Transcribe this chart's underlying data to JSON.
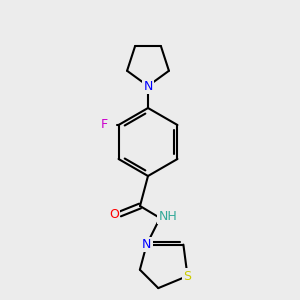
{
  "bg_color": "#ececec",
  "bond_color": "#000000",
  "bond_lw": 1.5,
  "font_size_label": 9,
  "atom_colors": {
    "N": "#0000ff",
    "O": "#ff0000",
    "F": "#cc00cc",
    "S": "#cccc00",
    "NH": "#33aa99"
  },
  "title": ""
}
